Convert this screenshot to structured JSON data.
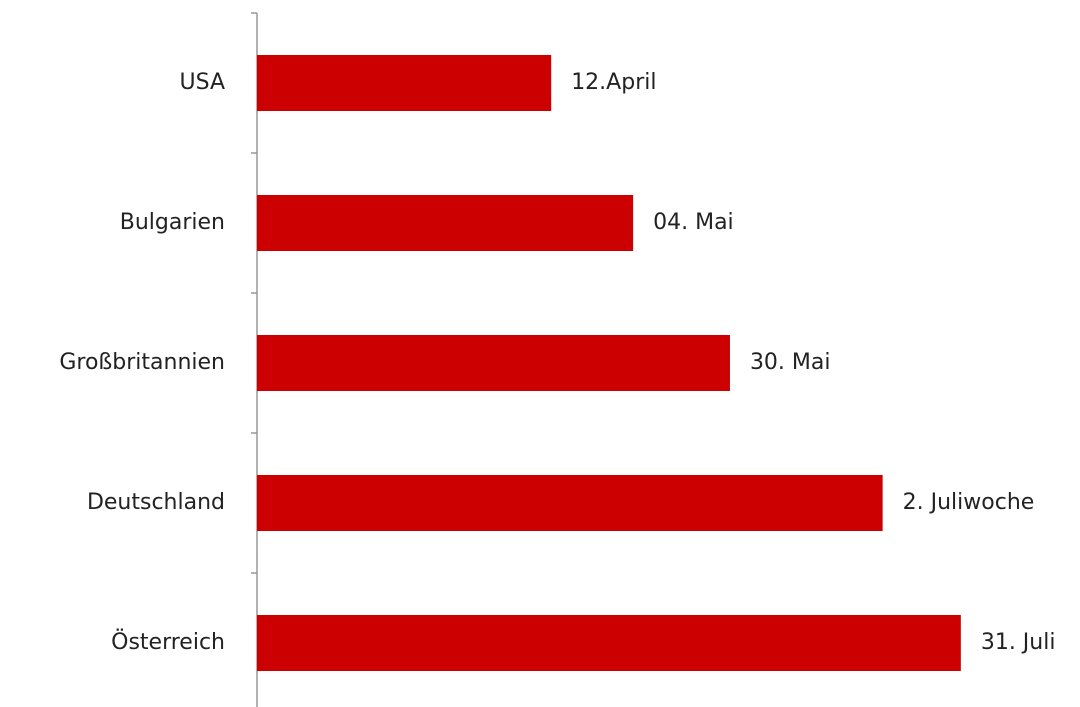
{
  "chart_data": {
    "type": "barh",
    "categories": [
      "USA",
      "Bulgarien",
      "Großbritannien",
      "Deutschland",
      "Österreich"
    ],
    "values": [
      102,
      124,
      150,
      191,
      212
    ],
    "value_labels": [
      "12.April",
      "04. Mai",
      "30. Mai",
      "2. Juliwoche",
      "31. Juli"
    ],
    "color": "#cc0000",
    "xlim": [
      23,
      244
    ]
  }
}
